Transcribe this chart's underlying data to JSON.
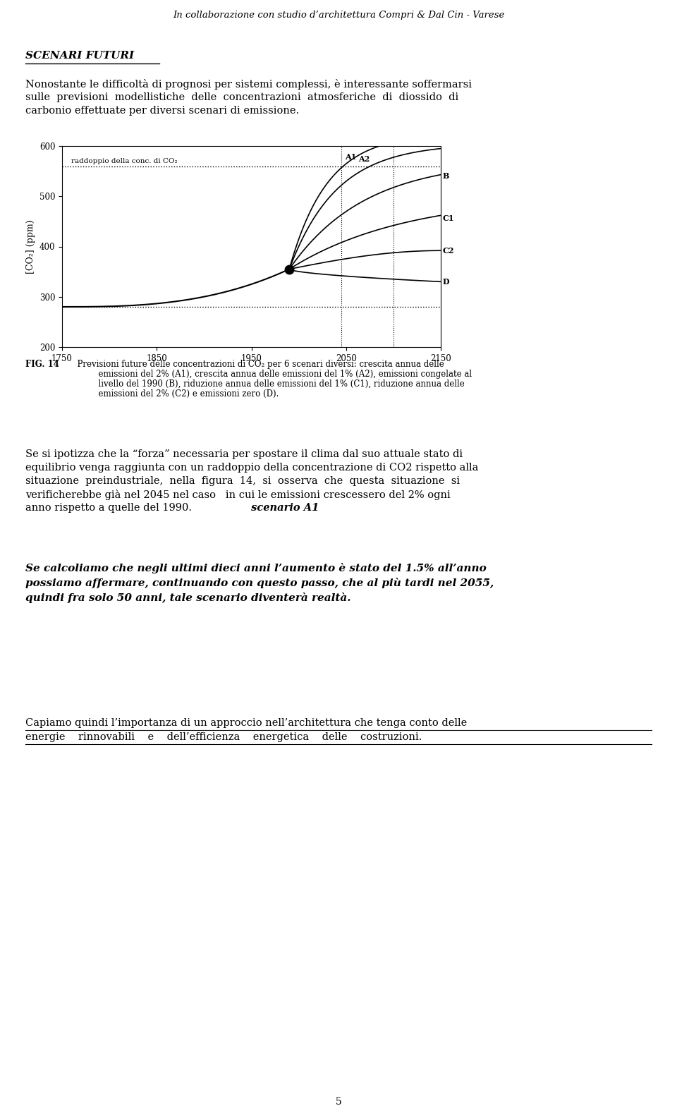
{
  "header": "In collaborazione con studio d’architettura Compri & Dal Cin - Varese",
  "section_title": "SCENARI FUTURI",
  "para1_lines": [
    "Nonostante le difficoltà di prognosi per sistemi complessi, è interessante soffermarsi",
    "sulle  previsioni  modellistiche  delle  concentrazioni  atmosferiche  di  diossido  di",
    "carbonio effettuate per diversi scenari di emissione."
  ],
  "fig_label": "FIG. 14",
  "fig_caption_lines": [
    "  Previsioni future delle concentrazioni di CO₂ per 6 scenari diversi: crescita annua delle",
    "          emissioni del 2% (A1), crescita annua delle emissioni del 1% (A2), emissioni congelate al",
    "          livello del 1990 (B), riduzione annua delle emissioni del 1% (C1), riduzione annua delle",
    "          emissioni del 2% (C2) e emissioni zero (D)."
  ],
  "para2_lines": [
    "Se si ipotizza che la “forza” necessaria per spostare il clima dal suo attuale stato di",
    "equilibrio venga raggiunta con un raddoppio della concentrazione di CO2 rispetto alla",
    "situazione  preindustriale,  nella  figura  14,  si  osserva  che  questa  situazione  si",
    "verificherebbe già nel 2045 nel caso   in cui le emissioni crescessero del 2% ogni",
    "anno rispetto a quelle del 1990."
  ],
  "para2_bold_suffix": " scenario A1",
  "para3_lines": [
    "Se calcoliamo che negli ultimi dieci anni l’aumento è stato del 1.5% all’anno",
    "possiamo affermare, continuando con questo passo, che al più tardi nel 2055,",
    "quindi fra solo 50 anni, tale scenario diventerà realtà."
  ],
  "para4_lines": [
    "Capiamo quindi l’importanza di un approccio nell’architettura che tenga conto delle",
    "energie    rinnovabili    e    dell’efficienza    energetica    delle    costruzioni."
  ],
  "page_num": "5",
  "chart": {
    "xlim": [
      1750,
      2150
    ],
    "ylim": [
      200,
      600
    ],
    "xticks": [
      1750,
      1850,
      1950,
      2050,
      2150
    ],
    "yticks": [
      200,
      300,
      400,
      500,
      600
    ],
    "ylabel": "[CO₂] (ppm)",
    "dotted_line_y1": 560,
    "dotted_line_label": "raddoppio della conc. di CO₂",
    "dotted_line_y2": 280,
    "pivot_x": 1990,
    "pivot_y": 355
  }
}
